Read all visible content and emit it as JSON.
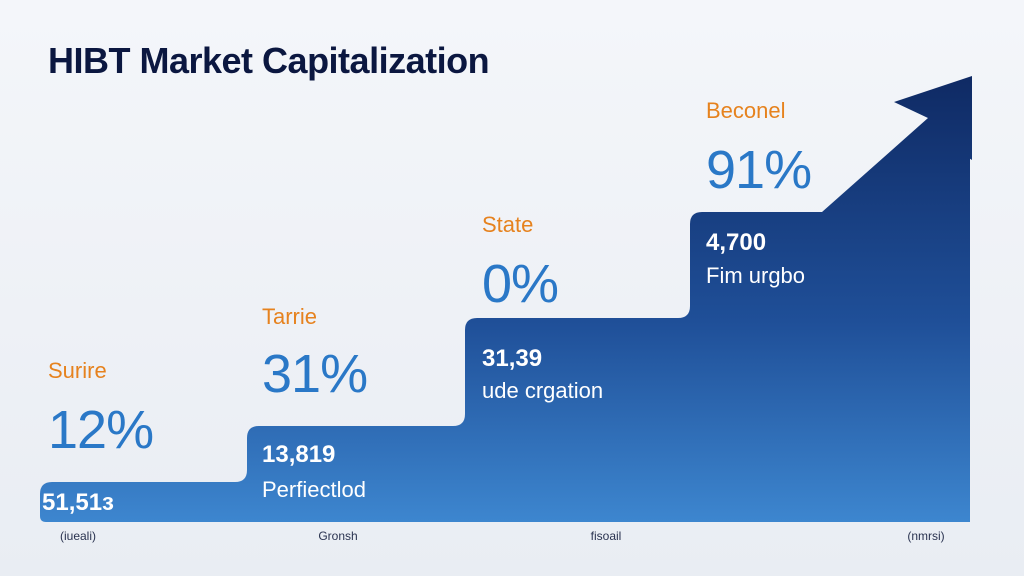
{
  "title": "HIBT Market Capitalization",
  "colors": {
    "title": "#0b1740",
    "stage_label": "#e6821e",
    "percentage": "#2a78c7",
    "value_text": "#ffffff",
    "gradient_top": "#0f2a64",
    "gradient_bottom": "#3d86cf"
  },
  "chart_data": {
    "type": "area",
    "title": "HIBT Market Capitalization",
    "subtitle": "",
    "xlabel": "",
    "ylabel": "",
    "grid": false,
    "legend": "none",
    "shape": "staircase with upward arrow",
    "x_labels": [
      "(iueali)",
      "Gronsh",
      "fisoail",
      "(nmrsi)"
    ],
    "categories": [
      "Surire",
      "Tarrie",
      "State",
      "Beconel"
    ],
    "percentages": [
      "12%",
      "31%",
      "0%",
      "91%"
    ],
    "values": [
      "51,51з",
      "13,819",
      "31,39",
      "4,700"
    ],
    "descriptions": [
      "",
      "Perfiectlod",
      "ude crgation",
      "Fim urgbo"
    ],
    "step_levels": [
      1,
      2,
      3,
      4
    ]
  }
}
